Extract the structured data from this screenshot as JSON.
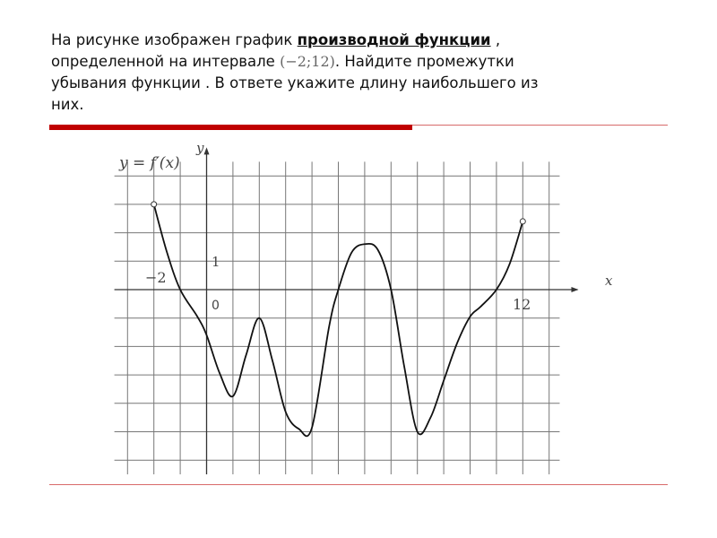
{
  "task": {
    "line1_a": "На рисунке изображен график ",
    "line1_bold": "производной функции",
    "line1_b": " ,",
    "line2_a": "определенной на интервале ",
    "line2_math": "(−2;12)",
    "line2_b": ". Найдите промежутки",
    "line3": "убывания функции . В ответе укажите длину наибольшего из",
    "line4": "них."
  },
  "colors": {
    "accent": "#c00000",
    "rule": "#d86a6a",
    "curve": "#111111",
    "grid": "#666666"
  },
  "chart_data": {
    "type": "line",
    "title": "y = f′(x)",
    "xlabel": "x",
    "ylabel": "y",
    "tick_labels": {
      "x_min": "−2",
      "x_origin": "0",
      "x_max": "12",
      "y_unit": "1"
    },
    "xlim": [
      -3.5,
      13.4
    ],
    "ylim": [
      -6.5,
      4.5
    ],
    "grid": true,
    "endpoints_open": true,
    "x": [
      -2,
      -1.5,
      -1,
      -0.35,
      0,
      0.5,
      1,
      1.5,
      2,
      2.5,
      3,
      3.5,
      4,
      4.65,
      5,
      5.5,
      6,
      6.5,
      7,
      7.5,
      8,
      8.5,
      9,
      9.5,
      10,
      10.4,
      11,
      11.5,
      12
    ],
    "y": [
      3,
      1.3,
      0,
      -0.95,
      -1.6,
      -2.95,
      -3.75,
      -2.3,
      -1,
      -2.5,
      -4.3,
      -4.9,
      -4.85,
      -1.3,
      0,
      1.3,
      1.6,
      1.4,
      0,
      -2.7,
      -5,
      -4.5,
      -3.2,
      -1.9,
      -0.95,
      -0.6,
      0,
      0.9,
      2.4
    ]
  }
}
